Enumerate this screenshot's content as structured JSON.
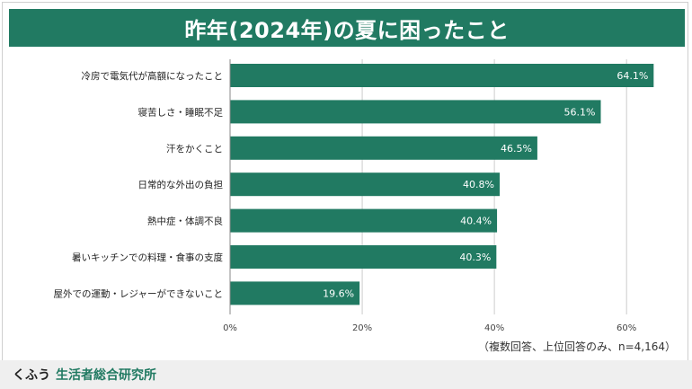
{
  "title": "昨年(2024年)の夏に困ったこと",
  "note": "（複数回答、上位回答のみ、n=4,164）",
  "footer": {
    "brand_a": "くふう",
    "brand_b": "生活者総合研究所"
  },
  "colors": {
    "bar": "#217A62",
    "title_bg": "#217A62",
    "grid": "#cccccc"
  },
  "chart_data": {
    "type": "bar",
    "orientation": "horizontal",
    "categories": [
      "冷房で電気代が高額になったこと",
      "寝苦しさ・睡眠不足",
      "汗をかくこと",
      "日常的な外出の負担",
      "熱中症・体調不良",
      "暑いキッチンでの料理・食事の支度",
      "屋外での運動・レジャーができないこと"
    ],
    "values": [
      64.1,
      56.1,
      46.5,
      40.8,
      40.4,
      40.3,
      19.6
    ],
    "value_labels": [
      "64.1%",
      "56.1%",
      "46.5%",
      "40.8%",
      "40.4%",
      "40.3%",
      "19.6%"
    ],
    "xlim": [
      0,
      68
    ],
    "xticks": [
      0,
      20,
      40,
      60
    ],
    "xtick_labels": [
      "0%",
      "20%",
      "40%",
      "60%"
    ],
    "grid": true
  }
}
